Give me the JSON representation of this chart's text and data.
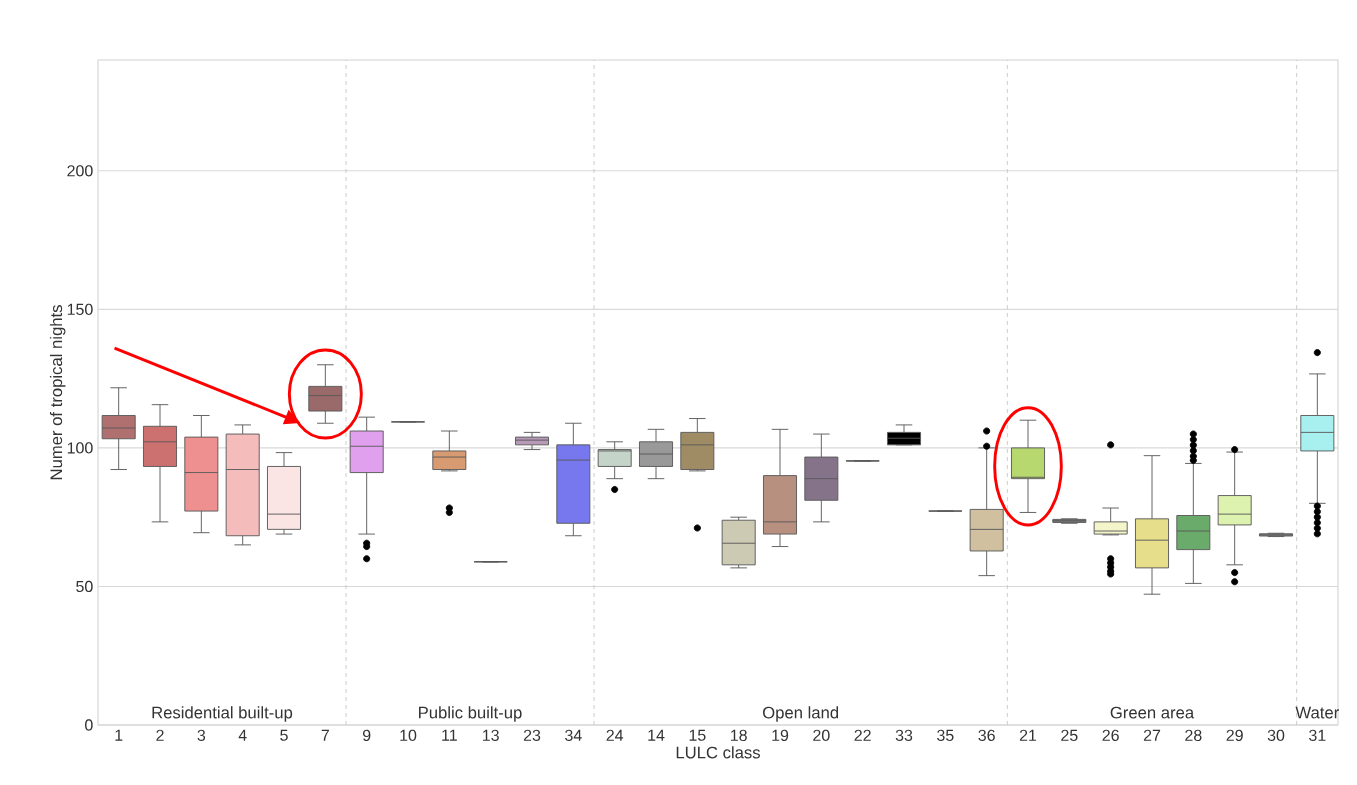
{
  "chart_data": {
    "type": "box",
    "xlabel": "LULC class",
    "ylabel": "Numer of tropical nights",
    "categories": [
      "1",
      "2",
      "3",
      "4",
      "5",
      "7",
      "9",
      "10",
      "11",
      "13",
      "23",
      "34",
      "24",
      "14",
      "15",
      "18",
      "19",
      "20",
      "22",
      "33",
      "35",
      "36",
      "21",
      "25",
      "26",
      "27",
      "28",
      "29",
      "30",
      "31"
    ],
    "boxes": [
      {
        "low": 92.2,
        "q1": 103.3,
        "median": 107.2,
        "q3": 111.7,
        "high": 121.7
      },
      {
        "low": 73.3,
        "q1": 93.3,
        "median": 102.2,
        "q3": 107.8,
        "high": 115.6
      },
      {
        "low": 69.4,
        "q1": 77.2,
        "median": 91.1,
        "q3": 103.9,
        "high": 111.7
      },
      {
        "low": 65,
        "q1": 68.3,
        "median": 92.2,
        "q3": 105,
        "high": 108.3
      },
      {
        "low": 68.9,
        "q1": 70.6,
        "median": 76.1,
        "q3": 93.3,
        "high": 98.3
      },
      {
        "low": 108.9,
        "q1": 113.3,
        "median": 118.9,
        "q3": 122.2,
        "high": 130
      },
      {
        "low": 68.9,
        "q1": 91.1,
        "median": 100.6,
        "q3": 106.1,
        "high": 111.1,
        "outliers": [
          65.6,
          64.4,
          60
        ]
      },
      {
        "low": 109.4,
        "q1": 109.4,
        "median": 109.4,
        "q3": 109.4,
        "high": 109.4
      },
      {
        "low": 91.7,
        "q1": 92.2,
        "median": 96.7,
        "q3": 98.9,
        "high": 106.1,
        "outliers": [
          78.3,
          76.7
        ]
      },
      {
        "low": 58.9,
        "q1": 58.9,
        "median": 58.9,
        "q3": 58.9,
        "high": 58.9
      },
      {
        "low": 99.4,
        "q1": 101.1,
        "median": 102.8,
        "q3": 103.9,
        "high": 105.6
      },
      {
        "low": 68.3,
        "q1": 72.8,
        "median": 95.6,
        "q3": 101.1,
        "high": 108.9
      },
      {
        "low": 88.9,
        "q1": 93.3,
        "median": 98.9,
        "q3": 99.4,
        "high": 102.2,
        "outliers": [
          85
        ]
      },
      {
        "low": 88.9,
        "q1": 93.3,
        "median": 97.8,
        "q3": 102.2,
        "high": 106.7
      },
      {
        "low": 91.7,
        "q1": 92.2,
        "median": 101.1,
        "q3": 105.6,
        "high": 110.6,
        "outliers": [
          71.1
        ]
      },
      {
        "low": 56.7,
        "q1": 57.8,
        "median": 65.6,
        "q3": 73.9,
        "high": 75
      },
      {
        "low": 64.4,
        "q1": 68.9,
        "median": 73.3,
        "q3": 90,
        "high": 106.7
      },
      {
        "low": 73.3,
        "q1": 81.1,
        "median": 88.9,
        "q3": 96.7,
        "high": 105
      },
      {
        "low": 95.3,
        "q1": 95.3,
        "median": 95.3,
        "q3": 95.3,
        "high": 95.3
      },
      {
        "low": 101.1,
        "q1": 101.1,
        "median": 103.5,
        "q3": 105.6,
        "high": 108.3
      },
      {
        "low": 77.2,
        "q1": 77.2,
        "median": 77.2,
        "q3": 77.2,
        "high": 77.2
      },
      {
        "low": 53.9,
        "q1": 62.8,
        "median": 70.6,
        "q3": 77.8,
        "high": 100,
        "outliers": [
          106.1,
          100.6
        ]
      },
      {
        "low": 76.7,
        "q1": 88.9,
        "median": 89.4,
        "q3": 100,
        "high": 110
      },
      {
        "low": 72.8,
        "q1": 73.1,
        "median": 73.7,
        "q3": 74.2,
        "high": 74.4
      },
      {
        "low": 68.6,
        "q1": 68.9,
        "median": 70,
        "q3": 73.3,
        "high": 78.3,
        "outliers": [
          101.1,
          60,
          58.5,
          57,
          55.5,
          54.5
        ]
      },
      {
        "low": 47.2,
        "q1": 56.7,
        "median": 66.7,
        "q3": 74.4,
        "high": 97.2
      },
      {
        "low": 51.1,
        "q1": 63.3,
        "median": 70,
        "q3": 75.6,
        "high": 94.4,
        "outliers": [
          105,
          103,
          101,
          99,
          97,
          95.5
        ]
      },
      {
        "low": 57.8,
        "q1": 72.2,
        "median": 76.1,
        "q3": 82.8,
        "high": 98.5,
        "outliers": [
          99.4,
          55,
          51.7
        ]
      },
      {
        "low": 68,
        "q1": 68.2,
        "median": 68.6,
        "q3": 69,
        "high": 69.2
      },
      {
        "low": 80,
        "q1": 98.9,
        "median": 105.6,
        "q3": 111.7,
        "high": 126.7,
        "outliers": [
          134.4,
          79,
          77,
          75,
          73,
          71,
          69
        ]
      }
    ],
    "colors": [
      "#b07070",
      "#cd7070",
      "#ee9090",
      "#f5bcbc",
      "#fae4e4",
      "#9a6a6a",
      "#e0a0ee",
      "#595959",
      "#d89a70",
      "#595959",
      "#b89ab8",
      "#7777ee",
      "#c4d4c8",
      "#999999",
      "#a08c64",
      "#cdcab4",
      "#b89080",
      "#857489",
      "#595959",
      "#000000",
      "#595959",
      "#d0c0a0",
      "#b6d86e",
      "#777777",
      "#f5f5cc",
      "#e6de8a",
      "#6aaa6a",
      "#def2b0",
      "#888888",
      "#a8f0f0"
    ],
    "ylim": [
      0,
      240
    ],
    "yticks": [
      0,
      50,
      100,
      150,
      200
    ],
    "grid": "y",
    "annotations": [
      "Residential built-up",
      "Public built-up",
      "Open land",
      "Green area",
      "Water"
    ]
  }
}
